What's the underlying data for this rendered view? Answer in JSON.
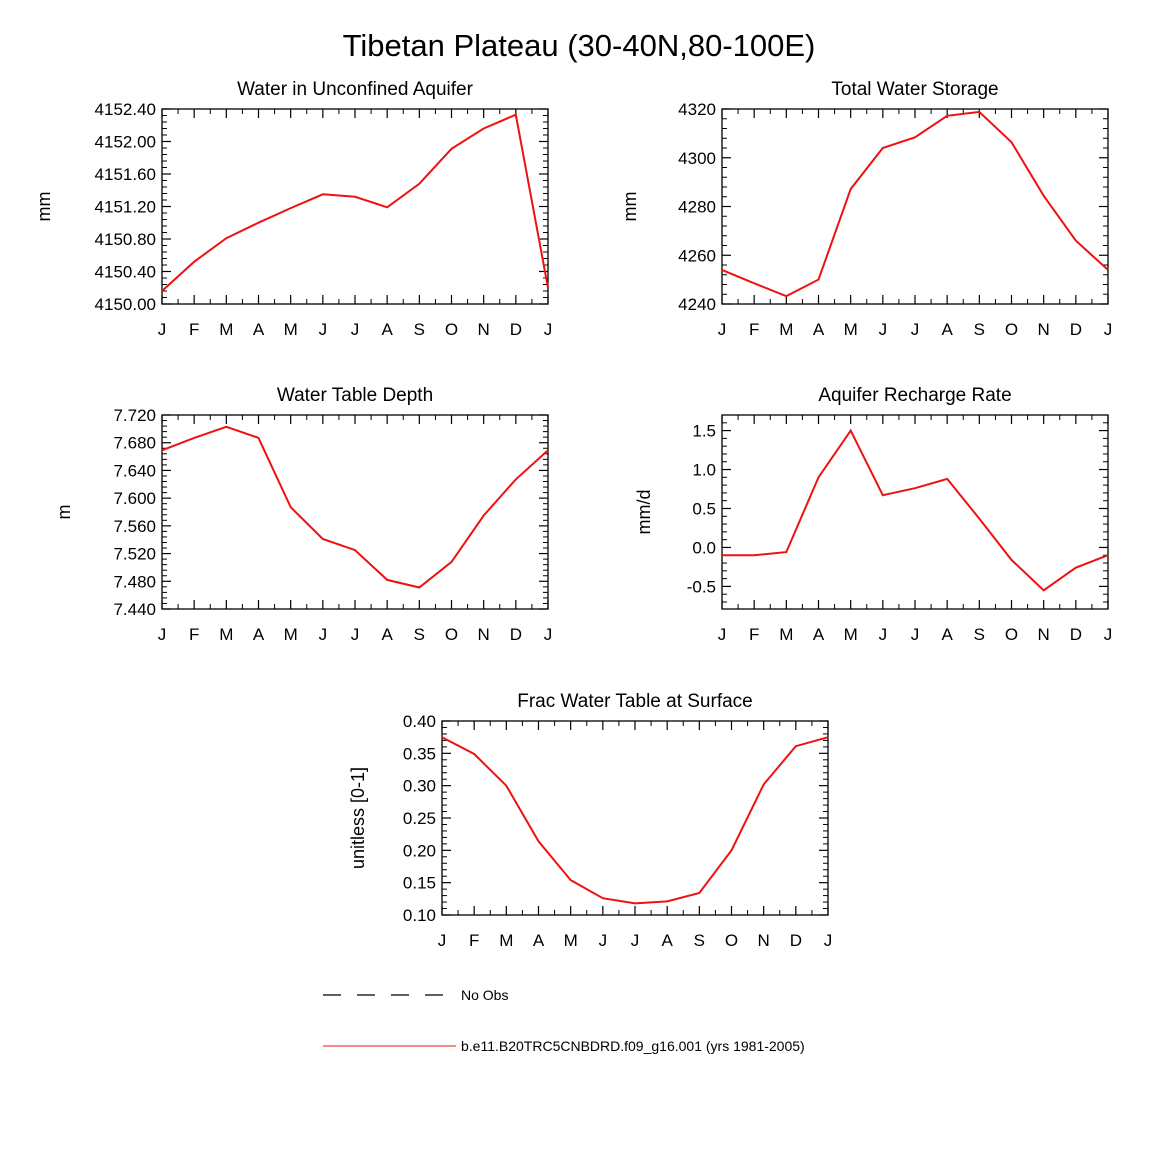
{
  "figure": {
    "title": "Tibetan Plateau (30-40N,80-100E)"
  },
  "legend": {
    "entries": [
      {
        "label": "No Obs",
        "style": "dashed",
        "color": "#000000"
      },
      {
        "label": "b.e11.B20TRC5CNBDRD.f09_g16.001 (yrs 1981-2005)",
        "style": "solid",
        "color": "#ee1111"
      }
    ]
  },
  "colors": {
    "series": "#ee1111",
    "axis": "#000000"
  },
  "chart_data": [
    {
      "type": "line",
      "title": "Water in Unconfined Aquifer",
      "ylabel": "mm",
      "xlabel": "",
      "categories": [
        "J",
        "F",
        "M",
        "A",
        "M",
        "J",
        "J",
        "A",
        "S",
        "O",
        "N",
        "D",
        "J"
      ],
      "yticks": [
        "4150.00",
        "4150.40",
        "4150.80",
        "4151.20",
        "4151.60",
        "4152.00",
        "4152.40"
      ],
      "ylim": [
        4150.0,
        4152.4
      ],
      "series": [
        {
          "values": [
            4150.16,
            4150.52,
            4150.81,
            4151.0,
            4151.18,
            4151.35,
            4151.32,
            4151.19,
            4151.48,
            4151.91,
            4152.16,
            4152.33,
            4150.2
          ]
        }
      ]
    },
    {
      "type": "line",
      "title": "Total Water Storage",
      "ylabel": "mm",
      "xlabel": "",
      "categories": [
        "J",
        "F",
        "M",
        "A",
        "M",
        "J",
        "J",
        "A",
        "S",
        "O",
        "N",
        "D",
        "J"
      ],
      "yticks": [
        "4240",
        "4260",
        "4280",
        "4300",
        "4320"
      ],
      "ylim": [
        4240,
        4320
      ],
      "series": [
        {
          "values": [
            4254,
            4248.5,
            4243.2,
            4250,
            4287.2,
            4304,
            4308.4,
            4317.2,
            4318.8,
            4306.4,
            4284.4,
            4266,
            4254
          ]
        }
      ]
    },
    {
      "type": "line",
      "title": "Water Table Depth",
      "ylabel": "m",
      "xlabel": "",
      "categories": [
        "J",
        "F",
        "M",
        "A",
        "M",
        "J",
        "J",
        "A",
        "S",
        "O",
        "N",
        "D",
        "J"
      ],
      "yticks": [
        "7.440",
        "7.480",
        "7.520",
        "7.560",
        "7.600",
        "7.640",
        "7.680",
        "7.720"
      ],
      "ylim": [
        7.44,
        7.72
      ],
      "series": [
        {
          "values": [
            7.669,
            7.687,
            7.703,
            7.687,
            7.587,
            7.541,
            7.525,
            7.482,
            7.471,
            7.508,
            7.575,
            7.627,
            7.669
          ]
        }
      ]
    },
    {
      "type": "line",
      "title": "Aquifer Recharge Rate",
      "ylabel": "mm/d",
      "xlabel": "",
      "categories": [
        "J",
        "F",
        "M",
        "A",
        "M",
        "J",
        "J",
        "A",
        "S",
        "O",
        "N",
        "D",
        "J"
      ],
      "yticks": [
        "-0.5",
        "0.0",
        "0.5",
        "1.0",
        "1.5"
      ],
      "ylim": [
        -0.79,
        1.7
      ],
      "series": [
        {
          "values": [
            -0.1,
            -0.1,
            -0.06,
            0.9,
            1.5,
            0.67,
            0.76,
            0.88,
            0.37,
            -0.16,
            -0.55,
            -0.26,
            -0.1
          ]
        }
      ]
    },
    {
      "type": "line",
      "title": "Frac Water Table at Surface",
      "ylabel": "unitless [0-1]",
      "xlabel": "",
      "categories": [
        "J",
        "F",
        "M",
        "A",
        "M",
        "J",
        "J",
        "A",
        "S",
        "O",
        "N",
        "D",
        "J"
      ],
      "yticks": [
        "0.10",
        "0.15",
        "0.20",
        "0.25",
        "0.30",
        "0.35",
        "0.40"
      ],
      "ylim": [
        0.1,
        0.4
      ],
      "series": [
        {
          "values": [
            0.375,
            0.349,
            0.3,
            0.214,
            0.154,
            0.126,
            0.118,
            0.121,
            0.134,
            0.2,
            0.302,
            0.361,
            0.375
          ]
        }
      ]
    }
  ]
}
